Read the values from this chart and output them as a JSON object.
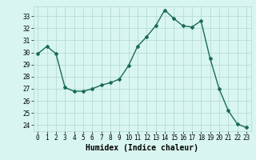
{
  "x": [
    0,
    1,
    2,
    3,
    4,
    5,
    6,
    7,
    8,
    9,
    10,
    11,
    12,
    13,
    14,
    15,
    16,
    17,
    18,
    19,
    20,
    21,
    22,
    23
  ],
  "y": [
    29.9,
    30.5,
    29.9,
    27.1,
    26.8,
    26.8,
    27.0,
    27.3,
    27.5,
    27.8,
    28.9,
    30.5,
    31.3,
    32.2,
    33.5,
    32.8,
    32.2,
    32.1,
    32.6,
    29.5,
    27.0,
    25.2,
    24.1,
    23.8
  ],
  "line_color": "#1a6b5a",
  "marker": "D",
  "marker_size": 2.0,
  "bg_color": "#d8f5f0",
  "grid_color": "#b0d9d0",
  "xlabel": "Humidex (Indice chaleur)",
  "ylim": [
    23.5,
    33.8
  ],
  "xlim": [
    -0.5,
    23.5
  ],
  "yticks": [
    24,
    25,
    26,
    27,
    28,
    29,
    30,
    31,
    32,
    33
  ],
  "xticks": [
    0,
    1,
    2,
    3,
    4,
    5,
    6,
    7,
    8,
    9,
    10,
    11,
    12,
    13,
    14,
    15,
    16,
    17,
    18,
    19,
    20,
    21,
    22,
    23
  ],
  "tick_fontsize": 5.5,
  "xlabel_fontsize": 7.0,
  "line_width": 1.0
}
